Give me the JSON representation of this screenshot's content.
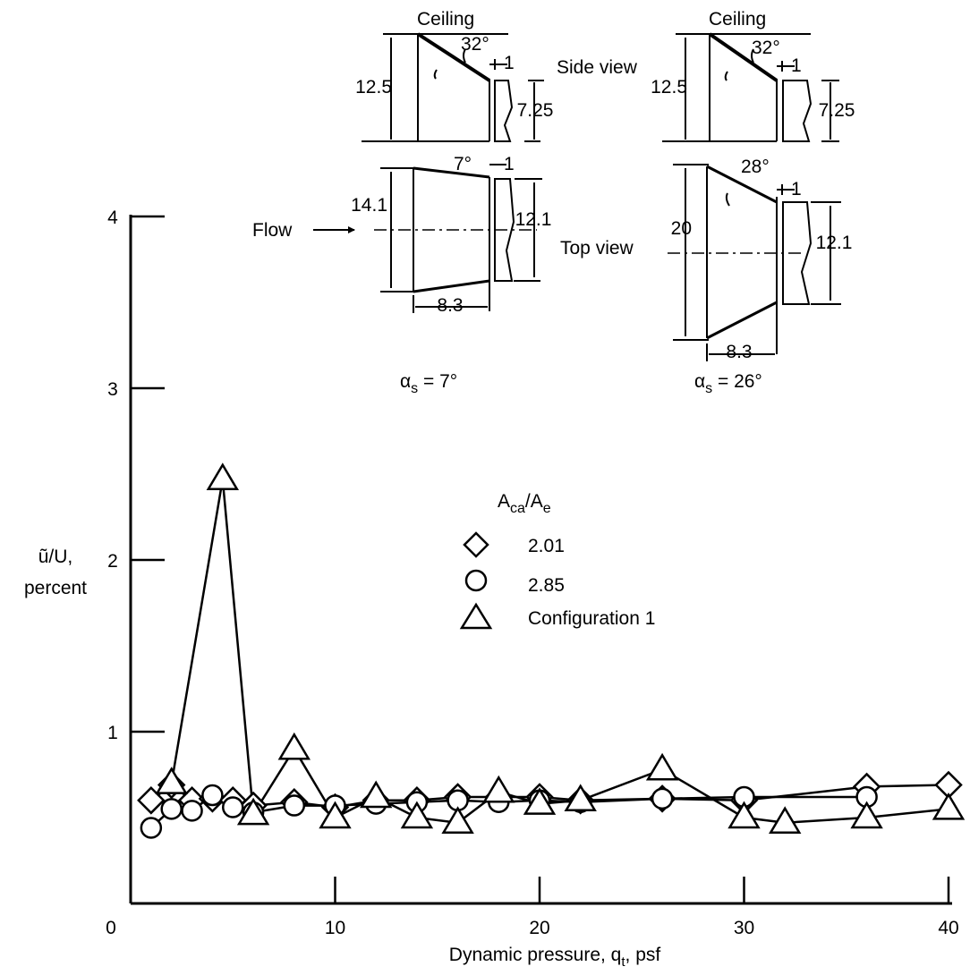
{
  "chart_data": {
    "type": "line",
    "xlabel": "Dynamic pressure, q",
    "xlabel_sub": "t",
    "xlabel_suffix": ", psf",
    "ylabel_line1": "ũ/U,",
    "ylabel_line2": "percent",
    "xlim": [
      0,
      40
    ],
    "ylim": [
      0,
      4
    ],
    "x_ticks": [
      0,
      10,
      20,
      30,
      40
    ],
    "y_ticks": [
      1,
      2,
      3,
      4
    ],
    "x_tick_labels": [
      "0",
      "10",
      "20",
      "30",
      "40"
    ],
    "y_tick_labels": [
      "1",
      "2",
      "3",
      "4"
    ],
    "grid": false,
    "legend_placement": "center-right",
    "legend_title": {
      "main": "A",
      "sub1": "ca",
      "mid": "/A",
      "sub2": "e"
    },
    "series": [
      {
        "name": "2.01",
        "marker": "diamond",
        "x": [
          1.0,
          2.0,
          3.0,
          4.0,
          5.0,
          6.0,
          8.0,
          10.0,
          12.0,
          14.0,
          16.0,
          18.0,
          20.0,
          22.0,
          26.0,
          30.0,
          36.0,
          40.0
        ],
        "y": [
          0.6,
          0.69,
          0.6,
          0.61,
          0.6,
          0.57,
          0.59,
          0.56,
          0.6,
          0.6,
          0.62,
          0.62,
          0.62,
          0.6,
          0.61,
          0.6,
          0.68,
          0.69
        ]
      },
      {
        "name": "2.85",
        "marker": "circle",
        "x": [
          1.0,
          2.0,
          3.0,
          4.0,
          5.0,
          6.0,
          8.0,
          10.0,
          12.0,
          14.0,
          16.0,
          18.0,
          20.0,
          22.0,
          26.0,
          30.0,
          36.0
        ],
        "y": [
          0.44,
          0.55,
          0.54,
          0.63,
          0.56,
          0.53,
          0.57,
          0.57,
          0.58,
          0.59,
          0.6,
          0.59,
          0.6,
          0.59,
          0.61,
          0.62,
          0.62
        ]
      },
      {
        "name": "Configuration 1",
        "marker": "triangle",
        "x": [
          2.0,
          4.5,
          6.0,
          8.0,
          10.0,
          12.0,
          14.0,
          16.0,
          18.0,
          20.0,
          22.0,
          26.0,
          30.0,
          32.0,
          36.0,
          40.0
        ],
        "y": [
          0.7,
          2.47,
          0.52,
          0.9,
          0.5,
          0.62,
          0.5,
          0.47,
          0.65,
          0.58,
          0.6,
          0.78,
          0.5,
          0.47,
          0.5,
          0.55
        ]
      }
    ]
  },
  "diagram": {
    "ceiling_label": "Ceiling",
    "side_view_label": "Side view",
    "top_view_label": "Top view",
    "flow_label": "Flow",
    "config_left": {
      "side_height": "12.5",
      "side_angle": "32°",
      "gap": "1",
      "side_duct": "7.25",
      "top_width": "14.1",
      "top_angle": "7°",
      "top_duct": "12.1",
      "length": "8.3",
      "alpha_symbol": "α",
      "alpha_sub": "s",
      "alpha_value": " = 7°"
    },
    "config_right": {
      "side_height": "12.5",
      "side_angle": "32°",
      "gap": "1",
      "side_duct": "7.25",
      "top_width": "20",
      "top_angle": "28°",
      "top_duct": "12.1",
      "length": "8.3",
      "alpha_symbol": "α",
      "alpha_sub": "s",
      "alpha_value": " = 26°"
    }
  }
}
